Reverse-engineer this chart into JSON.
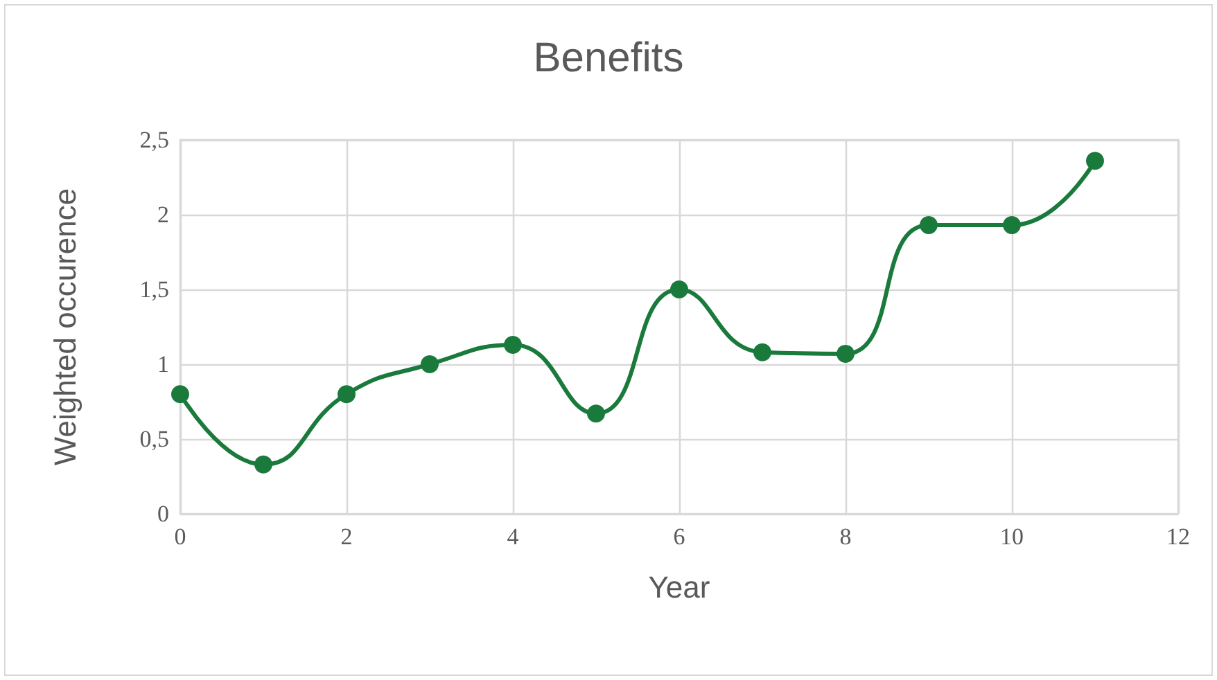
{
  "chart_data": {
    "type": "line",
    "title": "Benefits",
    "xlabel": "Year",
    "ylabel": "Weighted occurence",
    "x": [
      0,
      1,
      2,
      3,
      4,
      5,
      6,
      7,
      8,
      9,
      10,
      11
    ],
    "series": [
      {
        "color": "#1a7a3c",
        "values": [
          0.8,
          0.33,
          0.8,
          1.0,
          1.13,
          0.67,
          1.5,
          1.08,
          1.07,
          1.93,
          1.93,
          2.36
        ]
      }
    ],
    "xlim": [
      0,
      12
    ],
    "xticks": [
      0,
      2,
      4,
      6,
      8,
      10,
      12
    ],
    "ylim": [
      0,
      2.5
    ],
    "yticks": [
      0,
      {
        "value": 0.5,
        "label": "0,5"
      },
      1,
      {
        "value": 1.5,
        "label": "1,5"
      },
      2,
      {
        "value": 2.5,
        "label": "2,5"
      }
    ],
    "grid": true,
    "marker": "circle",
    "line_style": "solid"
  }
}
